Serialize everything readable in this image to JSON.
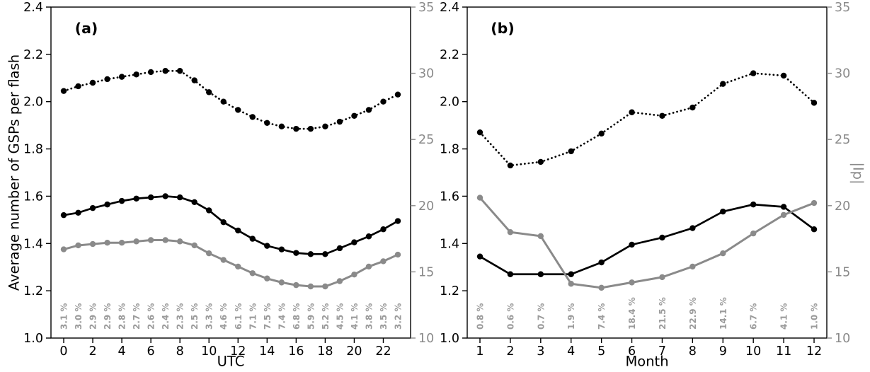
{
  "figure": {
    "ylabel_left": "Average number of GSPs per flash",
    "ylabel_right": "|Ip|",
    "background": "#ffffff",
    "colors": {
      "axis_black": "#000000",
      "series_gray": "#8a8a8a",
      "pct_gray": "#9b9b9b"
    }
  },
  "chart_data": [
    {
      "type": "line",
      "panel": "(a)",
      "xlabel": "UTC",
      "x": [
        0,
        1,
        2,
        3,
        4,
        5,
        6,
        7,
        8,
        9,
        10,
        11,
        12,
        13,
        14,
        15,
        16,
        17,
        18,
        19,
        20,
        21,
        22,
        23
      ],
      "x_ticks": [
        0,
        2,
        4,
        6,
        8,
        10,
        12,
        14,
        16,
        18,
        20,
        22
      ],
      "ylim_left": [
        1.0,
        2.4
      ],
      "yticks_left": [
        1.0,
        1.2,
        1.4,
        1.6,
        1.8,
        2.0,
        2.2,
        2.4
      ],
      "ylim_right": [
        10,
        35
      ],
      "yticks_right": [
        10,
        15,
        20,
        25,
        30,
        35
      ],
      "series": [
        {
          "name": "avg-gsps-dotted",
          "axis": "left",
          "style": "dotted",
          "color": "black",
          "values": [
            2.045,
            2.065,
            2.08,
            2.095,
            2.105,
            2.115,
            2.125,
            2.13,
            2.13,
            2.09,
            2.04,
            2.0,
            1.965,
            1.935,
            1.91,
            1.895,
            1.885,
            1.885,
            1.895,
            1.915,
            1.94,
            1.965,
            2.0,
            2.03
          ]
        },
        {
          "name": "avg-gsps-solid",
          "axis": "left",
          "style": "solid",
          "color": "black",
          "values": [
            1.52,
            1.53,
            1.55,
            1.565,
            1.58,
            1.59,
            1.595,
            1.6,
            1.595,
            1.575,
            1.54,
            1.49,
            1.455,
            1.42,
            1.39,
            1.375,
            1.36,
            1.355,
            1.355,
            1.38,
            1.405,
            1.43,
            1.46,
            1.495
          ]
        },
        {
          "name": "peak-current-ip",
          "axis": "right",
          "style": "solid",
          "color": "gray",
          "values": [
            16.7,
            17.0,
            17.1,
            17.2,
            17.2,
            17.3,
            17.4,
            17.4,
            17.3,
            17.0,
            16.4,
            15.9,
            15.4,
            14.9,
            14.5,
            14.2,
            14.0,
            13.9,
            13.9,
            14.3,
            14.8,
            15.4,
            15.8,
            16.3
          ]
        }
      ],
      "pct_labels": [
        "3.1 %",
        "3.0 %",
        "2.9 %",
        "2.9 %",
        "2.8 %",
        "2.7 %",
        "2.6 %",
        "2.4 %",
        "2.3 %",
        "2.5 %",
        "3.3 %",
        "4.6 %",
        "6.1 %",
        "7.1 %",
        "7.5 %",
        "7.4 %",
        "6.8 %",
        "5.9 %",
        "5.2 %",
        "4.5 %",
        "4.1 %",
        "3.8 %",
        "3.5 %",
        "3.2 %"
      ]
    },
    {
      "type": "line",
      "panel": "(b)",
      "xlabel": "Month",
      "x": [
        1,
        2,
        3,
        4,
        5,
        6,
        7,
        8,
        9,
        10,
        11,
        12
      ],
      "x_ticks": [
        1,
        2,
        3,
        4,
        5,
        6,
        7,
        8,
        9,
        10,
        11,
        12
      ],
      "ylim_left": [
        1.0,
        2.4
      ],
      "yticks_left": [
        1.0,
        1.2,
        1.4,
        1.6,
        1.8,
        2.0,
        2.2,
        2.4
      ],
      "ylim_right": [
        10,
        35
      ],
      "yticks_right": [
        10,
        15,
        20,
        25,
        30,
        35
      ],
      "series": [
        {
          "name": "avg-gsps-dotted",
          "axis": "left",
          "style": "dotted",
          "color": "black",
          "values": [
            1.87,
            1.73,
            1.745,
            1.79,
            1.865,
            1.955,
            1.94,
            1.975,
            2.075,
            2.12,
            2.11,
            1.995
          ]
        },
        {
          "name": "avg-gsps-solid",
          "axis": "left",
          "style": "solid",
          "color": "black",
          "values": [
            1.345,
            1.27,
            1.27,
            1.27,
            1.32,
            1.395,
            1.425,
            1.465,
            1.535,
            1.565,
            1.555,
            1.46
          ]
        },
        {
          "name": "peak-current-ip",
          "axis": "right",
          "style": "solid",
          "color": "gray",
          "values": [
            20.6,
            18.0,
            17.7,
            14.1,
            13.8,
            14.2,
            14.6,
            15.4,
            16.4,
            17.9,
            19.3,
            20.2
          ]
        }
      ],
      "pct_labels": [
        "0.8 %",
        "0.6 %",
        "0.7 %",
        "1.9 %",
        "7.4 %",
        "18.4 %",
        "21.5 %",
        "22.9 %",
        "14.1 %",
        "6.7 %",
        "4.1 %",
        "1.0 %"
      ]
    }
  ]
}
